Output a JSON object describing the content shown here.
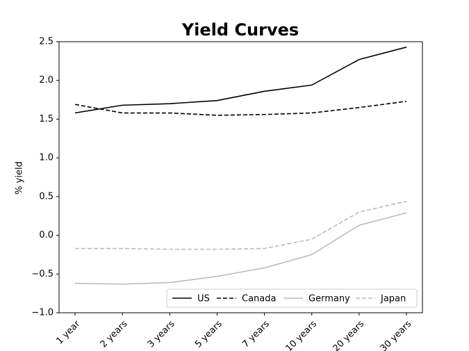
{
  "chart_data": {
    "type": "line",
    "title": "Yield Curves",
    "y_label": "% yield",
    "categories": [
      "1 year",
      "2 years",
      "3 years",
      "5 years",
      "7 years",
      "10 years",
      "20 years",
      "30 years"
    ],
    "series": [
      {
        "name": "US",
        "color": "#000000",
        "dash": false,
        "values": [
          1.58,
          1.68,
          1.7,
          1.74,
          1.86,
          1.94,
          2.27,
          2.43
        ]
      },
      {
        "name": "Canada",
        "color": "#000000",
        "dash": true,
        "values": [
          1.69,
          1.58,
          1.58,
          1.55,
          1.56,
          1.58,
          1.65,
          1.73
        ]
      },
      {
        "name": "Germany",
        "color": "#bbbbbb",
        "dash": false,
        "values": [
          -0.62,
          -0.63,
          -0.61,
          -0.53,
          -0.42,
          -0.25,
          0.13,
          0.29
        ]
      },
      {
        "name": "Japan",
        "color": "#bbbbbb",
        "dash": true,
        "values": [
          -0.17,
          -0.17,
          -0.18,
          -0.18,
          -0.17,
          -0.05,
          0.3,
          0.44
        ]
      }
    ],
    "ylim": [
      -1.0,
      2.5
    ],
    "yticks": [
      {
        "value": -1.0,
        "label": "−1.0"
      },
      {
        "value": -0.5,
        "label": "−0.5"
      },
      {
        "value": 0,
        "label": "0.0"
      },
      0.5,
      {
        "value": 1.0,
        "label": "1.0"
      },
      1.5,
      {
        "value": 2.0,
        "label": "2.0"
      },
      2.5
    ],
    "grid": false,
    "legend": "lower right"
  }
}
